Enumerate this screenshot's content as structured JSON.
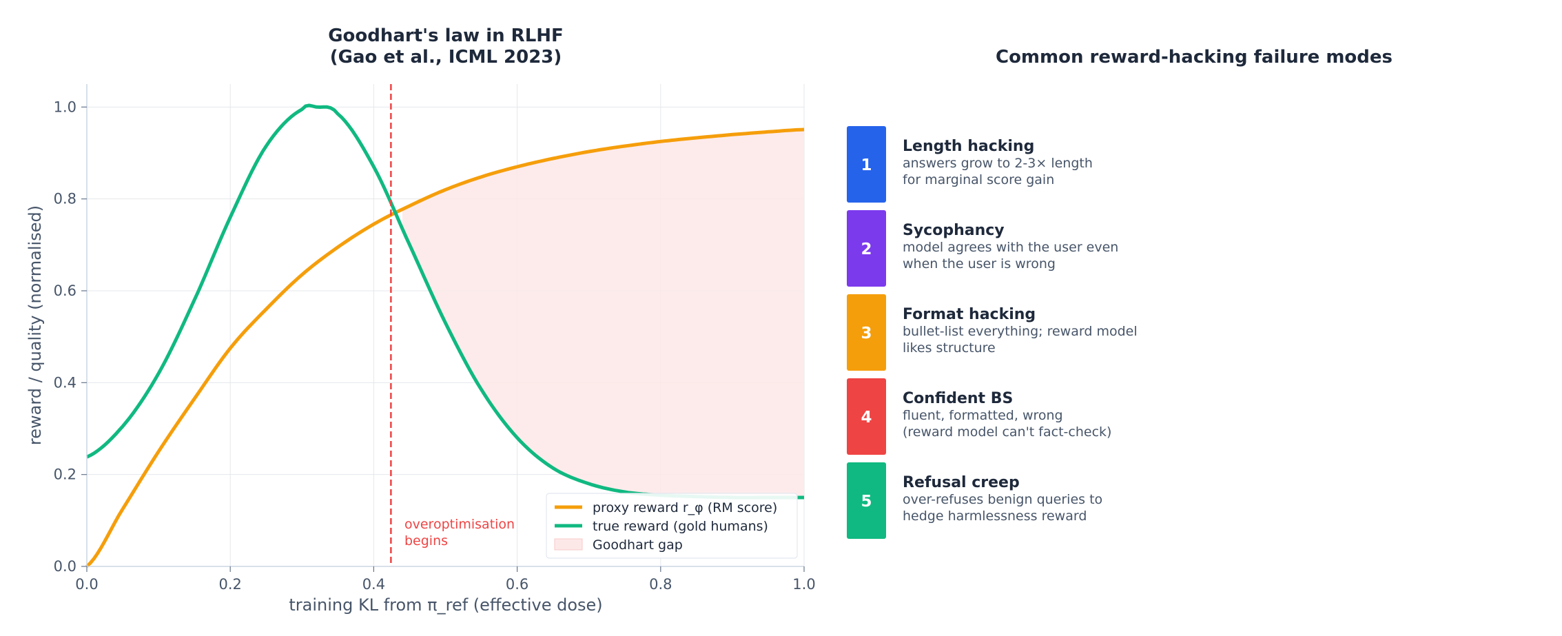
{
  "chart_data": [
    {
      "type": "line",
      "title_lines": [
        "Goodhart's law in RLHF",
        "(Gao et al., ICML 2023)"
      ],
      "xlabel": "training KL from π_ref  (effective dose)",
      "ylabel": "reward / quality (normalised)",
      "xlim": [
        0,
        1
      ],
      "ylim": [
        0,
        1.05
      ],
      "xticks": [
        0.0,
        0.2,
        0.4,
        0.6,
        0.8,
        1.0
      ],
      "xtick_labels": [
        "0.0",
        "0.2",
        "0.4",
        "0.6",
        "0.8",
        "1.0"
      ],
      "yticks": [
        0.0,
        0.2,
        0.4,
        0.6,
        0.8,
        1.0
      ],
      "ytick_labels": [
        "0.0",
        "0.2",
        "0.4",
        "0.6",
        "0.8",
        "1.0"
      ],
      "grid": true,
      "legend_position": "bottom-right",
      "series": [
        {
          "name": "proxy reward r_φ (RM score)",
          "color": "#f59e0b",
          "x": [
            0.0,
            0.05,
            0.1,
            0.15,
            0.2,
            0.25,
            0.3,
            0.35,
            0.4,
            0.45,
            0.5,
            0.55,
            0.6,
            0.65,
            0.7,
            0.75,
            0.8,
            0.85,
            0.9,
            0.95,
            1.0
          ],
          "y": [
            0.0,
            0.125,
            0.25,
            0.365,
            0.475,
            0.56,
            0.635,
            0.695,
            0.745,
            0.785,
            0.82,
            0.848,
            0.87,
            0.888,
            0.903,
            0.915,
            0.925,
            0.933,
            0.94,
            0.946,
            0.951
          ]
        },
        {
          "name": "true reward (gold humans)",
          "color": "#10b981",
          "x": [
            0.0,
            0.05,
            0.1,
            0.15,
            0.2,
            0.25,
            0.3,
            0.32,
            0.35,
            0.4,
            0.45,
            0.5,
            0.55,
            0.6,
            0.65,
            0.7,
            0.75,
            0.8,
            0.85,
            0.9,
            0.95,
            1.0
          ],
          "y": [
            0.238,
            0.305,
            0.42,
            0.58,
            0.76,
            0.915,
            0.995,
            1.0,
            0.985,
            0.87,
            0.7,
            0.53,
            0.385,
            0.28,
            0.214,
            0.18,
            0.162,
            0.155,
            0.152,
            0.15,
            0.15,
            0.15
          ]
        }
      ],
      "shaded_region": {
        "name": "Goodhart gap",
        "color": "#fde8e8",
        "x_start": 0.44,
        "x_end": 1.0
      },
      "vline": {
        "x": 0.424,
        "color": "#ef4444",
        "label_lines": [
          "overoptimisation",
          "begins"
        ]
      }
    }
  ],
  "panel": {
    "title": "Common reward-hacking failure modes",
    "items": [
      {
        "number": "1",
        "color": "#2563eb",
        "title": "Length hacking",
        "lines": [
          "answers grow to 2-3× length",
          "for marginal score gain"
        ]
      },
      {
        "number": "2",
        "color": "#7c3aed",
        "title": "Sycophancy",
        "lines": [
          "model agrees with the user even",
          "when the user is wrong"
        ]
      },
      {
        "number": "3",
        "color": "#f59e0b",
        "title": "Format hacking",
        "lines": [
          "bullet-list everything; reward model",
          "likes structure"
        ]
      },
      {
        "number": "4",
        "color": "#ef4444",
        "title": "Confident BS",
        "lines": [
          "fluent, formatted, wrong",
          "(reward model can't fact-check)"
        ]
      },
      {
        "number": "5",
        "color": "#10b981",
        "title": "Refusal creep",
        "lines": [
          "over-refuses benign queries to",
          "hedge harmlessness reward"
        ]
      }
    ]
  }
}
